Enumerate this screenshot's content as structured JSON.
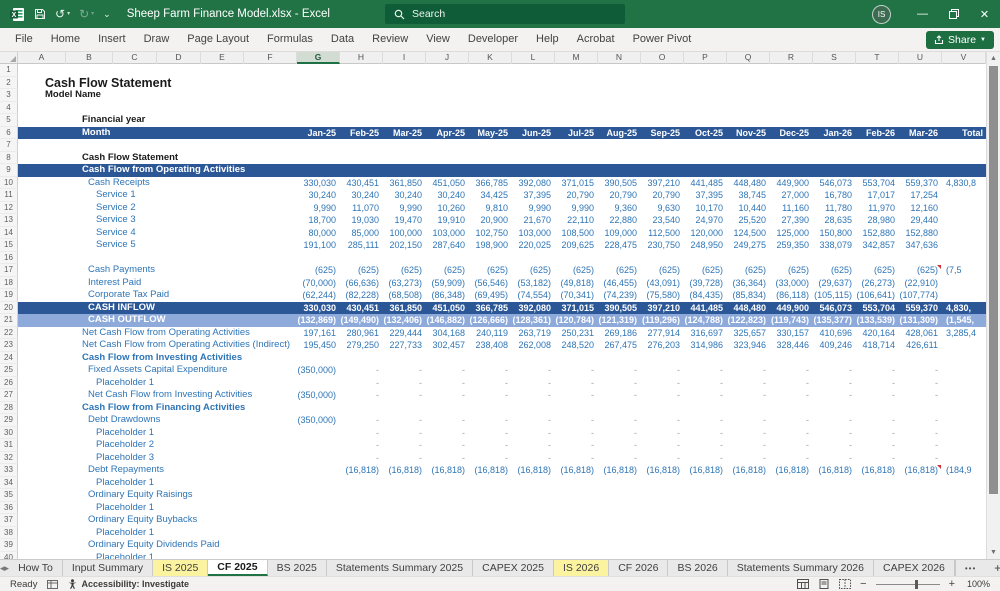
{
  "colors": {
    "excel_green": "#217346",
    "share_green": "#1d6f42",
    "banner_blue": "#2B5797",
    "banner_light_blue": "#8EAADB",
    "text_blue": "#2E75B6",
    "tab_highlight_yellow": "#FBF3A0",
    "comment_marker_red": "#D13438"
  },
  "titlebar": {
    "title": "Sheep Farm Finance Model.xlsx - Excel",
    "search_placeholder": "Search",
    "avatar_initials": "IS"
  },
  "ribbon": {
    "tabs": [
      "File",
      "Home",
      "Insert",
      "Draw",
      "Page Layout",
      "Formulas",
      "Data",
      "Review",
      "View",
      "Developer",
      "Help",
      "Acrobat",
      "Power Pivot"
    ],
    "share_label": "Share"
  },
  "grid": {
    "column_letters": [
      "A",
      "B",
      "C",
      "D",
      "E",
      "F",
      "G",
      "H",
      "I",
      "J",
      "K",
      "L",
      "M",
      "N",
      "O",
      "P",
      "Q",
      "R",
      "S",
      "T",
      "U",
      "V"
    ],
    "selected_column": "G",
    "months": [
      "Jan-25",
      "Feb-25",
      "Mar-25",
      "Apr-25",
      "May-25",
      "Jun-25",
      "Jul-25",
      "Aug-25",
      "Sep-25",
      "Oct-25",
      "Nov-25",
      "Dec-25",
      "Jan-26",
      "Feb-26",
      "Mar-26"
    ],
    "total_label": "Total",
    "rows": [
      {
        "n": 1
      },
      {
        "n": 2,
        "label": "Cash Flow Statement",
        "style": "title",
        "ind": 0
      },
      {
        "n": 3,
        "label": "Model Name",
        "style": "boldblack",
        "ind": 0
      },
      {
        "n": 4
      },
      {
        "n": 5,
        "label": "Financial year",
        "style": "boldblack",
        "ind": 1
      },
      {
        "n": 6,
        "label": "Month",
        "style": "banner",
        "ind": 1,
        "header": true
      },
      {
        "n": 7
      },
      {
        "n": 8,
        "label": "Cash Flow Statement",
        "style": "boldblack",
        "ind": 1
      },
      {
        "n": 9,
        "label": "Cash Flow from Operating Activities",
        "style": "banner",
        "ind": 1
      },
      {
        "n": 10,
        "label": "Cash Receipts",
        "style": "item",
        "ind": 2,
        "values": [
          "330,030",
          "430,451",
          "361,850",
          "451,050",
          "366,785",
          "392,080",
          "371,015",
          "390,505",
          "397,210",
          "441,485",
          "448,480",
          "449,900",
          "546,073",
          "553,704",
          "559,370",
          "4,830,8"
        ]
      },
      {
        "n": 11,
        "label": "Service 1",
        "style": "item",
        "ind": 3,
        "values": [
          "30,240",
          "30,240",
          "30,240",
          "30,240",
          "34,425",
          "37,395",
          "20,790",
          "20,790",
          "20,790",
          "37,395",
          "38,745",
          "27,000",
          "16,780",
          "17,017",
          "17,254",
          ""
        ]
      },
      {
        "n": 12,
        "label": "Service 2",
        "style": "item",
        "ind": 3,
        "values": [
          "9,990",
          "11,070",
          "9,990",
          "10,260",
          "9,810",
          "9,990",
          "9,990",
          "9,360",
          "9,630",
          "10,170",
          "10,440",
          "11,160",
          "11,780",
          "11,970",
          "12,160",
          ""
        ]
      },
      {
        "n": 13,
        "label": "Service 3",
        "style": "item",
        "ind": 3,
        "values": [
          "18,700",
          "19,030",
          "19,470",
          "19,910",
          "20,900",
          "21,670",
          "22,110",
          "22,880",
          "23,540",
          "24,970",
          "25,520",
          "27,390",
          "28,635",
          "28,980",
          "29,440",
          ""
        ]
      },
      {
        "n": 14,
        "label": "Service 4",
        "style": "item",
        "ind": 3,
        "values": [
          "80,000",
          "85,000",
          "100,000",
          "103,000",
          "102,750",
          "103,000",
          "108,500",
          "109,000",
          "112,500",
          "120,000",
          "124,500",
          "125,000",
          "150,800",
          "152,880",
          "152,880",
          ""
        ]
      },
      {
        "n": 15,
        "label": "Service 5",
        "style": "item",
        "ind": 3,
        "values": [
          "191,100",
          "285,111",
          "202,150",
          "287,640",
          "198,900",
          "220,025",
          "209,625",
          "228,475",
          "230,750",
          "248,950",
          "249,275",
          "259,350",
          "338,079",
          "342,857",
          "347,636",
          ""
        ]
      },
      {
        "n": 16
      },
      {
        "n": 17,
        "label": "Cash Payments",
        "style": "item",
        "ind": 2,
        "marks": [
          14
        ],
        "values": [
          "(625)",
          "(625)",
          "(625)",
          "(625)",
          "(625)",
          "(625)",
          "(625)",
          "(625)",
          "(625)",
          "(625)",
          "(625)",
          "(625)",
          "(625)",
          "(625)",
          "(625)",
          "(7,5"
        ]
      },
      {
        "n": 18,
        "label": "Interest Paid",
        "style": "item",
        "ind": 2,
        "values": [
          "(70,000)",
          "(66,636)",
          "(63,273)",
          "(59,909)",
          "(56,546)",
          "(53,182)",
          "(49,818)",
          "(46,455)",
          "(43,091)",
          "(39,728)",
          "(36,364)",
          "(33,000)",
          "(29,637)",
          "(26,273)",
          "(22,910)",
          ""
        ]
      },
      {
        "n": 19,
        "label": "Corporate Tax Paid",
        "style": "item",
        "ind": 2,
        "values": [
          "(62,244)",
          "(82,228)",
          "(68,508)",
          "(86,348)",
          "(69,495)",
          "(74,554)",
          "(70,341)",
          "(74,239)",
          "(75,580)",
          "(84,435)",
          "(85,834)",
          "(86,118)",
          "(105,115)",
          "(106,641)",
          "(107,774)",
          ""
        ]
      },
      {
        "n": 20,
        "label": "CASH INFLOW",
        "style": "banner",
        "ind": 2,
        "values": [
          "330,030",
          "430,451",
          "361,850",
          "451,050",
          "366,785",
          "392,080",
          "371,015",
          "390,505",
          "397,210",
          "441,485",
          "448,480",
          "449,900",
          "546,073",
          "553,704",
          "559,370",
          "4,830,"
        ]
      },
      {
        "n": 21,
        "label": "CASH OUTFLOW",
        "style": "bannerlight",
        "ind": 2,
        "values": [
          "(132,869)",
          "(149,490)",
          "(132,406)",
          "(146,882)",
          "(126,666)",
          "(128,361)",
          "(120,784)",
          "(121,319)",
          "(119,296)",
          "(124,788)",
          "(122,823)",
          "(119,743)",
          "(135,377)",
          "(133,539)",
          "(131,309)",
          "(1,545,"
        ]
      },
      {
        "n": 22,
        "label": "Net Cash Flow from Operating Activities",
        "style": "item",
        "ind": 1,
        "values": [
          "197,161",
          "280,961",
          "229,444",
          "304,168",
          "240,119",
          "263,719",
          "250,231",
          "269,186",
          "277,914",
          "316,697",
          "325,657",
          "330,157",
          "410,696",
          "420,164",
          "428,061",
          "3,285,4"
        ]
      },
      {
        "n": 23,
        "label": "Net Cash Flow from Operating Activities (Indirect)",
        "style": "item",
        "ind": 1,
        "values": [
          "195,450",
          "279,250",
          "227,733",
          "302,457",
          "238,408",
          "262,008",
          "248,520",
          "267,475",
          "276,203",
          "314,986",
          "323,946",
          "328,446",
          "409,246",
          "418,714",
          "426,611",
          ""
        ]
      },
      {
        "n": 24,
        "label": "Cash Flow from Investing Activities",
        "style": "section",
        "ind": 1
      },
      {
        "n": 25,
        "label": "Fixed Assets Capital Expenditure",
        "style": "item",
        "ind": 2,
        "values": [
          "(350,000)",
          "-",
          "-",
          "-",
          "-",
          "-",
          "-",
          "-",
          "-",
          "-",
          "-",
          "-",
          "-",
          "-",
          "-",
          ""
        ]
      },
      {
        "n": 26,
        "label": "Placeholder 1",
        "style": "item",
        "ind": 3,
        "values": [
          "",
          "-",
          "-",
          "-",
          "-",
          "-",
          "-",
          "-",
          "-",
          "-",
          "-",
          "-",
          "-",
          "-",
          "-",
          ""
        ]
      },
      {
        "n": 27,
        "label": "Net Cash Flow from Investing Activities",
        "style": "item",
        "ind": 2,
        "values": [
          "(350,000)",
          "-",
          "-",
          "-",
          "-",
          "-",
          "-",
          "-",
          "-",
          "-",
          "-",
          "-",
          "-",
          "-",
          "-",
          ""
        ]
      },
      {
        "n": 28,
        "label": "Cash Flow from Financing Activities",
        "style": "section",
        "ind": 1
      },
      {
        "n": 29,
        "label": "Debt Drawdowns",
        "style": "item",
        "ind": 2,
        "values": [
          "(350,000)",
          "-",
          "-",
          "-",
          "-",
          "-",
          "-",
          "-",
          "-",
          "-",
          "-",
          "-",
          "-",
          "-",
          "-",
          ""
        ]
      },
      {
        "n": 30,
        "label": "Placeholder 1",
        "style": "item",
        "ind": 3,
        "values": [
          "",
          "-",
          "-",
          "-",
          "-",
          "-",
          "-",
          "-",
          "-",
          "-",
          "-",
          "-",
          "-",
          "-",
          "-",
          ""
        ]
      },
      {
        "n": 31,
        "label": "Placeholder 2",
        "style": "item",
        "ind": 3,
        "values": [
          "",
          "-",
          "-",
          "-",
          "-",
          "-",
          "-",
          "-",
          "-",
          "-",
          "-",
          "-",
          "-",
          "-",
          "-",
          ""
        ]
      },
      {
        "n": 32,
        "label": "Placeholder 3",
        "style": "item",
        "ind": 3,
        "values": [
          "",
          "-",
          "-",
          "-",
          "-",
          "-",
          "-",
          "-",
          "-",
          "-",
          "-",
          "-",
          "-",
          "-",
          "-",
          ""
        ]
      },
      {
        "n": 33,
        "label": "Debt Repayments",
        "style": "item",
        "ind": 2,
        "marks": [
          14
        ],
        "values": [
          "",
          "(16,818)",
          "(16,818)",
          "(16,818)",
          "(16,818)",
          "(16,818)",
          "(16,818)",
          "(16,818)",
          "(16,818)",
          "(16,818)",
          "(16,818)",
          "(16,818)",
          "(16,818)",
          "(16,818)",
          "(16,818)",
          "(184,9"
        ]
      },
      {
        "n": 34,
        "label": "Placeholder 1",
        "style": "item",
        "ind": 3
      },
      {
        "n": 35,
        "label": "Ordinary Equity Raisings",
        "style": "item",
        "ind": 2
      },
      {
        "n": 36,
        "label": "Placeholder 1",
        "style": "item",
        "ind": 3
      },
      {
        "n": 37,
        "label": "Ordinary Equity Buybacks",
        "style": "item",
        "ind": 2
      },
      {
        "n": 38,
        "label": "Placeholder 1",
        "style": "item",
        "ind": 3
      },
      {
        "n": 39,
        "label": "Ordinary Equity Dividends Paid",
        "style": "item",
        "ind": 2
      },
      {
        "n": 40,
        "label": "Placeholder 1",
        "style": "item",
        "ind": 3
      }
    ]
  },
  "sheet_tabs": {
    "tabs": [
      {
        "label": "How To"
      },
      {
        "label": "Input Summary"
      },
      {
        "label": "IS 2025",
        "highlight": true
      },
      {
        "label": "CF 2025",
        "active": true
      },
      {
        "label": "BS 2025"
      },
      {
        "label": "Statements Summary 2025"
      },
      {
        "label": "CAPEX 2025"
      },
      {
        "label": "IS 2026",
        "highlight": true
      },
      {
        "label": "CF 2026"
      },
      {
        "label": "BS 2026"
      },
      {
        "label": "Statements Summary 2026"
      },
      {
        "label": "CAPEX 2026"
      }
    ],
    "more_label": "•••",
    "new_sheet_label": "+"
  },
  "status_bar": {
    "ready_label": "Ready",
    "accessibility_label": "Accessibility: Investigate",
    "zoom_level": "100%"
  }
}
